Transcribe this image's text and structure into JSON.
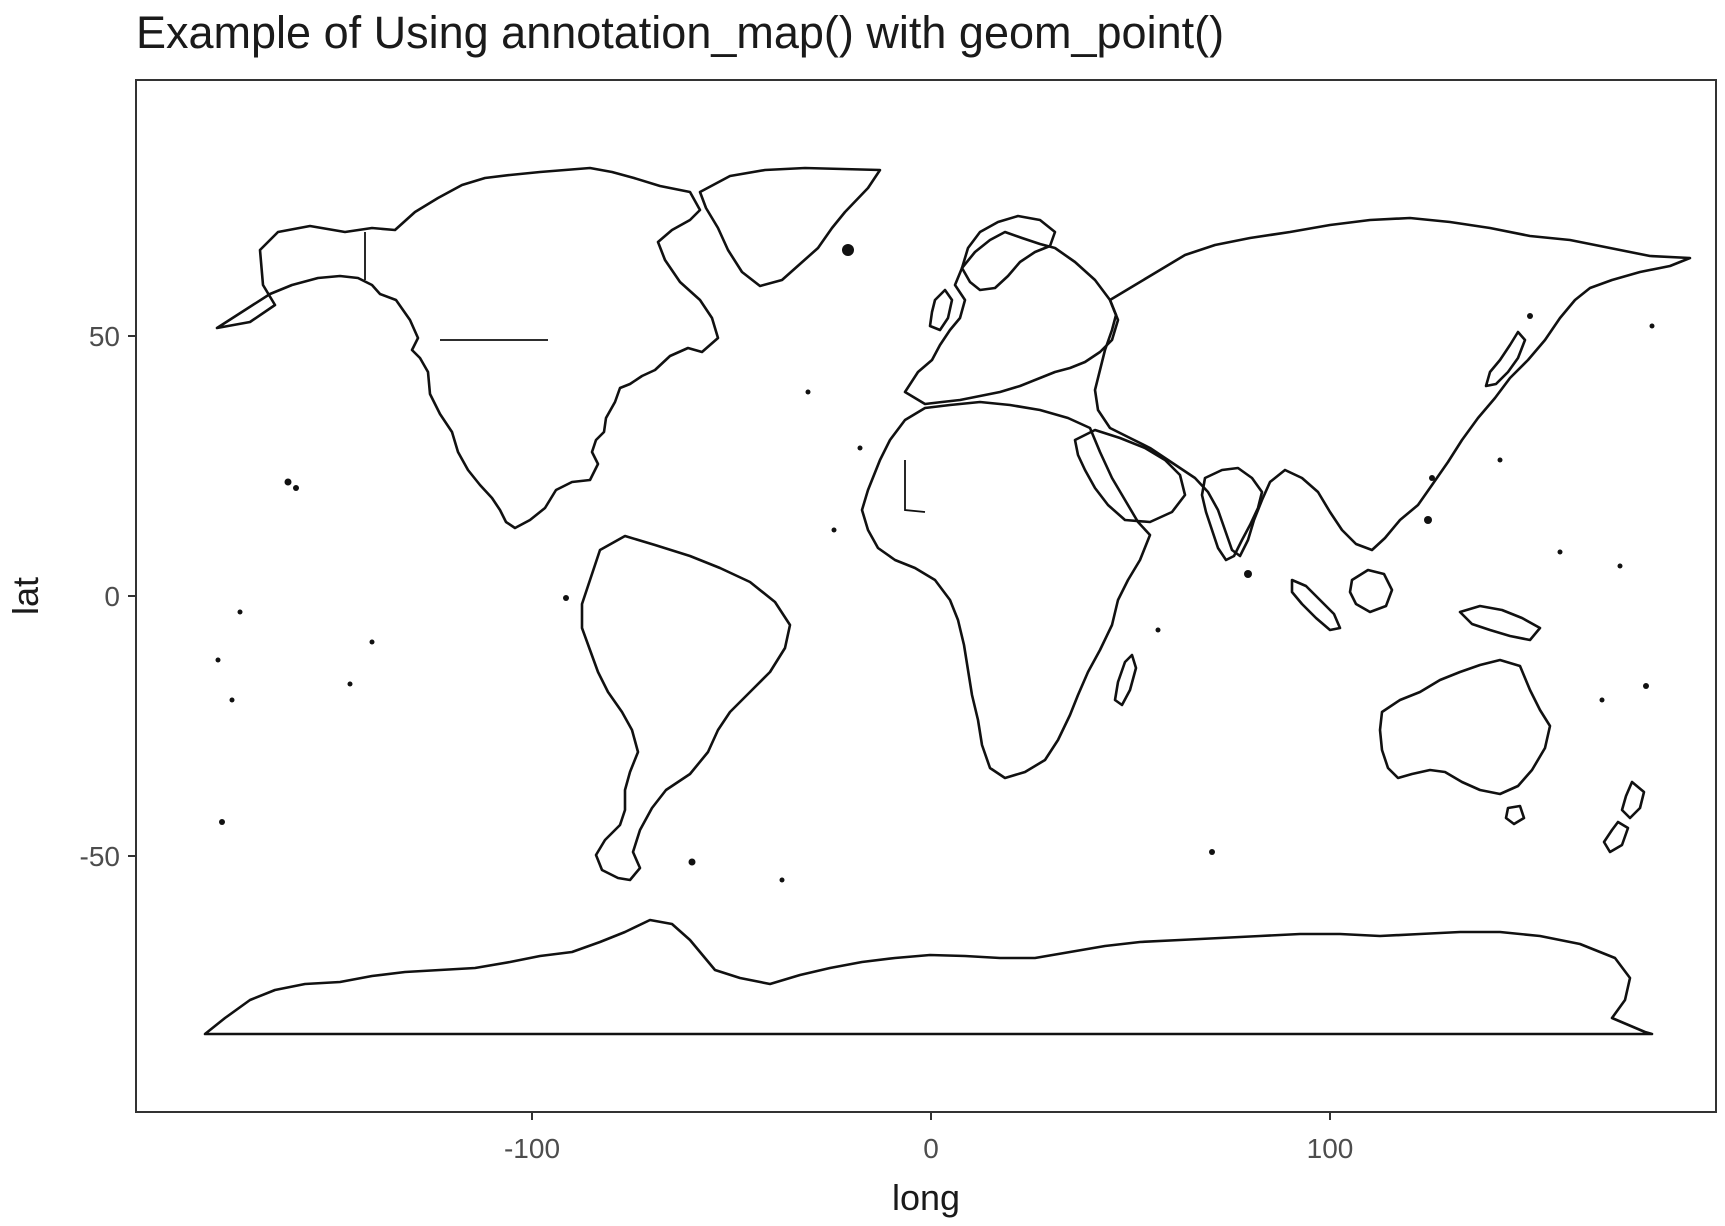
{
  "chart_data": {
    "type": "map",
    "title": "Example of Using annotation_map() with geom_point()",
    "xlabel": "long",
    "ylabel": "lat",
    "xlim": [
      -198,
      198
    ],
    "ylim": [
      -99,
      98
    ],
    "x_ticks": [
      {
        "value": -100,
        "label": "-100"
      },
      {
        "value": 0,
        "label": "0"
      },
      {
        "value": 100,
        "label": "100"
      }
    ],
    "y_ticks": [
      {
        "value": 50,
        "label": "50"
      },
      {
        "value": 0,
        "label": "0"
      },
      {
        "value": -50,
        "label": "-50"
      }
    ],
    "grid": false,
    "legend": "none",
    "colors": {
      "outline": "#111111",
      "panel_border": "#333333",
      "background": "#ffffff",
      "tick_text": "#4d4d4d",
      "title_text": "#1a1a1a"
    }
  }
}
